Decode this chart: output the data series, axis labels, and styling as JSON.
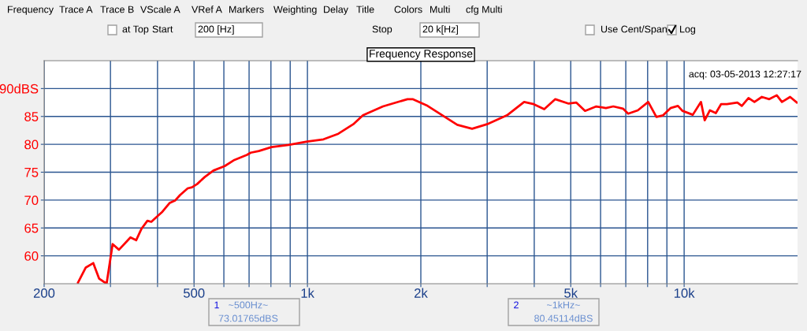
{
  "chart_data": {
    "type": "line",
    "title": "Frequency Response",
    "annotations": [
      "acq: 03-05-2013 12:27:17",
      "Frequency",
      "Trace A",
      "Trace B",
      "VScale A",
      "VRef A",
      "Markers",
      "Weighting",
      "Delay",
      "Title",
      "Colors",
      "Multi",
      "cfg Multi",
      "at Top",
      "Start",
      "200 [Hz]",
      "Stop",
      "20 k[Hz]",
      "Use Cent/Span",
      "Log",
      "1",
      "~500Hz~",
      "73.01765dBS",
      "2",
      "~1kHz~",
      "80.45114dBS"
    ],
    "x": [
      246,
      258,
      270,
      280,
      293,
      304,
      316,
      339,
      351,
      363,
      376,
      385,
      401,
      412,
      431,
      445,
      459,
      481,
      494,
      510,
      533,
      563,
      603,
      640,
      691,
      707,
      743,
      803,
      891,
      998,
      1103,
      1208,
      1323,
      1404,
      1587,
      1843,
      1902,
      1991,
      2084,
      2282,
      2499,
      2736,
      2996,
      3386,
      3760,
      3988,
      4252,
      4550,
      4937,
      5169,
      5458,
      5845,
      6198,
      6487,
      6880,
      7102,
      7534,
      8029,
      8440,
      8792,
      9200,
      9627,
      9894,
      10544,
      11084,
      11340,
      11706,
      12137,
      12529,
      12992,
      13844,
      14227,
      14821,
      15368,
      16081,
      16827,
      17614,
      18182,
      19112,
      19908
    ],
    "series": [
      {
        "color": "#ff0000",
        "values": [
          55.2,
          57.9,
          58.7,
          55.9,
          55,
          62.1,
          61.1,
          63.3,
          62.8,
          64.9,
          66.3,
          66.1,
          67.2,
          67.9,
          69.5,
          69.9,
          70.9,
          72.1,
          72.3,
          72.9,
          74.1,
          75.3,
          76.1,
          77.2,
          78.1,
          78.5,
          78.8,
          79.5,
          79.9,
          80.5,
          80.9,
          81.9,
          83.6,
          85.2,
          86.8,
          88.1,
          88.1,
          87.5,
          86.9,
          85.2,
          83.5,
          82.8,
          83.6,
          85.2,
          87.6,
          87.2,
          86.3,
          88.1,
          87.3,
          87.5,
          86.0,
          86.8,
          86.5,
          86.8,
          86.4,
          85.5,
          86.1,
          87.6,
          84.9,
          85.2,
          86.5,
          86.9,
          86.0,
          85.3,
          87.6,
          84.3,
          86.1,
          85.6,
          87.2,
          87.2,
          87.5,
          86.9,
          88.3,
          87.6,
          88.5,
          88.1,
          88.8,
          87.6,
          88.5,
          87.5
        ]
      }
    ],
    "xlim": [
      200,
      20000
    ],
    "ylim": [
      55,
      95
    ],
    "log": "x",
    "grid": true,
    "xticks": [
      200,
      {
        "value": 300,
        "label": null
      },
      {
        "value": 400,
        "label": null
      },
      500,
      {
        "value": 600,
        "label": null
      },
      {
        "value": 700,
        "label": null
      },
      {
        "value": 800,
        "label": null
      },
      {
        "value": 900,
        "label": null
      },
      {
        "value": 1000,
        "label": "1k"
      },
      {
        "value": 2000,
        "label": "2k"
      },
      {
        "value": 3000,
        "label": null
      },
      {
        "value": 4000,
        "label": null
      },
      {
        "value": 5000,
        "label": "5k"
      },
      {
        "value": 6000,
        "label": null
      },
      {
        "value": 7000,
        "label": null
      },
      {
        "value": 8000,
        "label": null
      },
      {
        "value": 9000,
        "label": null
      },
      {
        "value": 10000,
        "label": "10k"
      }
    ],
    "yticks": [
      60,
      65,
      70,
      75,
      80,
      85,
      {
        "value": 90,
        "label": "90dBS"
      }
    ]
  }
}
